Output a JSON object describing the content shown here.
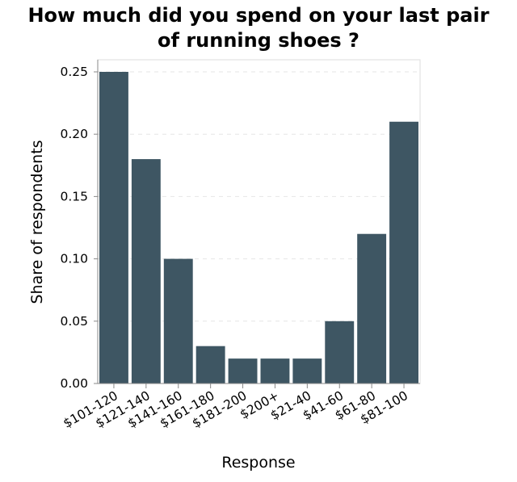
{
  "chart_data": {
    "type": "bar",
    "title_lines": [
      "How much did you spend on your last pair",
      "of running shoes ?"
    ],
    "xlabel": "Response",
    "ylabel": "Share of respondents",
    "categories": [
      "$101-120",
      "$121-140",
      "$141-160",
      "$161-180",
      "$181-200",
      "$200+",
      "$21-40",
      "$41-60",
      "$61-80",
      "$81-100"
    ],
    "values": [
      0.25,
      0.18,
      0.1,
      0.03,
      0.02,
      0.02,
      0.02,
      0.05,
      0.12,
      0.21
    ],
    "ylim": [
      0,
      0.25
    ],
    "yticks": [
      "0.00",
      "0.05",
      "0.10",
      "0.15",
      "0.20",
      "0.25"
    ],
    "grid": true,
    "bar_color": "#3e5663"
  }
}
